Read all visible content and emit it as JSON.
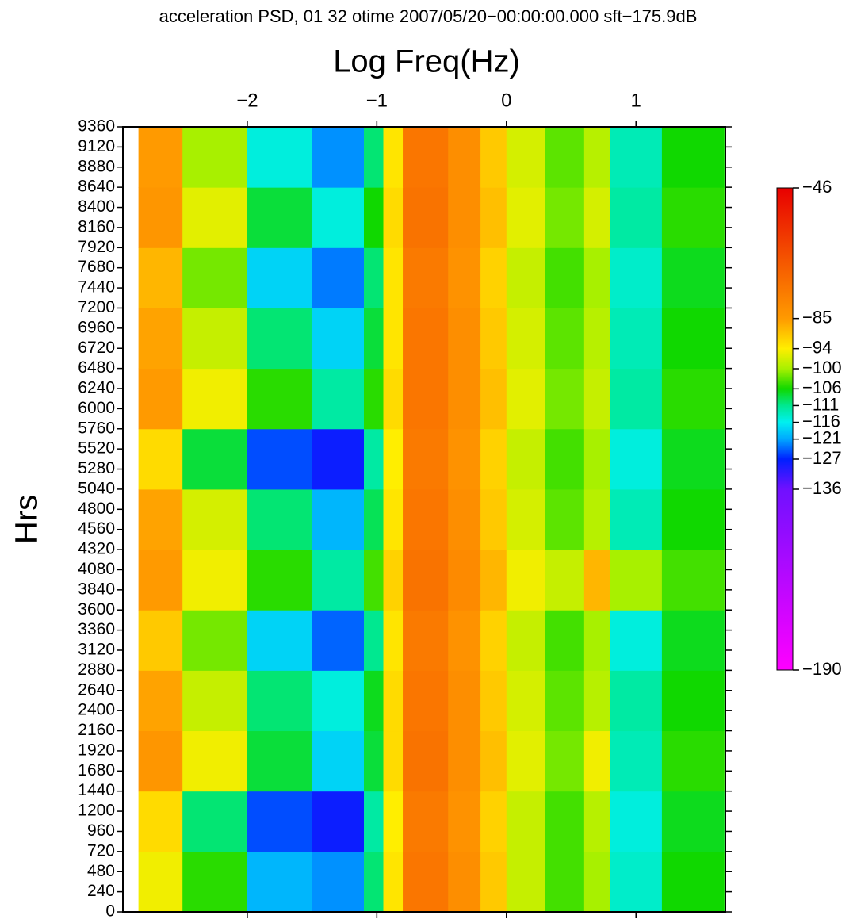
{
  "chart_data": {
    "type": "heatmap",
    "title": "acceleration PSD, 01 32 otime 2007/05/20−00:00:00.000 sft−175.9dB",
    "x_label": "Log Freq(Hz)",
    "y_label": "Hrs",
    "xlim": [
      -2.96,
      1.69
    ],
    "ylim": [
      0,
      9360
    ],
    "xticks": [
      {
        "value": -2,
        "label": "−2"
      },
      {
        "value": -1,
        "label": "−1"
      },
      0,
      1
    ],
    "yticks": [
      0,
      240,
      480,
      720,
      960,
      1200,
      1440,
      1680,
      1920,
      2160,
      2400,
      2640,
      2880,
      3120,
      3360,
      3600,
      3840,
      4080,
      4320,
      4560,
      4800,
      5040,
      5280,
      5520,
      5760,
      6000,
      6240,
      6480,
      6720,
      6960,
      7200,
      7440,
      7680,
      7920,
      8160,
      8400,
      8640,
      8880,
      9120,
      9360
    ],
    "xbins": [
      -2.84,
      -2.5,
      -2.0,
      -1.5,
      -1.1,
      -0.95,
      -0.8,
      -0.45,
      -0.2,
      0,
      0.3,
      0.6,
      0.8,
      1.2,
      1.68
    ],
    "ybins": [
      0,
      720,
      1440,
      2160,
      2880,
      3600,
      4320,
      5040,
      5760,
      6480,
      7200,
      7920,
      8640,
      9360
    ],
    "z": [
      [
        -95,
        -105,
        -120,
        -122,
        -110,
        -93,
        -76,
        -82,
        -90,
        -98,
        -104,
        -100,
        -114,
        -106
      ],
      [
        -92,
        -110,
        -125,
        -128,
        -112,
        -94,
        -77,
        -83,
        -91,
        -98,
        -104,
        -99,
        -115,
        -107
      ],
      [
        -84,
        -95,
        -108,
        -118,
        -108,
        -92,
        -75,
        -82,
        -89,
        -96,
        -102,
        -95,
        -113,
        -105
      ],
      [
        -86,
        -98,
        -110,
        -115,
        -107,
        -92,
        -76,
        -82,
        -90,
        -97,
        -103,
        -99,
        -112,
        -106
      ],
      [
        -90,
        -102,
        -118,
        -124,
        -111,
        -93,
        -77,
        -83,
        -91,
        -98,
        -104,
        -100,
        -115,
        -107
      ],
      [
        -85,
        -95,
        -105,
        -112,
        -104,
        -91,
        -75,
        -81,
        -88,
        -95,
        -98,
        -88,
        -100,
        -104
      ],
      [
        -86,
        -97,
        -110,
        -120,
        -109,
        -93,
        -76,
        -82,
        -90,
        -97,
        -103,
        -99,
        -113,
        -106
      ],
      [
        -92,
        -108,
        -125,
        -128,
        -112,
        -94,
        -77,
        -83,
        -91,
        -98,
        -104,
        -100,
        -115,
        -107
      ],
      [
        -85,
        -95,
        -105,
        -112,
        -105,
        -92,
        -76,
        -82,
        -89,
        -96,
        -102,
        -98,
        -112,
        -105
      ],
      [
        -86,
        -98,
        -110,
        -118,
        -108,
        -93,
        -76,
        -82,
        -90,
        -97,
        -103,
        -99,
        -113,
        -106
      ],
      [
        -88,
        -102,
        -118,
        -123,
        -110,
        -93,
        -77,
        -83,
        -91,
        -98,
        -104,
        -100,
        -114,
        -107
      ],
      [
        -84,
        -96,
        -108,
        -115,
        -106,
        -92,
        -75,
        -82,
        -89,
        -96,
        -102,
        -97,
        -112,
        -105
      ],
      [
        -85,
        -100,
        -115,
        -122,
        -110,
        -93,
        -76,
        -82,
        -90,
        -97,
        -103,
        -99,
        -113,
        -106
      ]
    ],
    "zlim": [
      -190,
      -46
    ],
    "zticks": [
      {
        "value": -46,
        "label": "−46"
      },
      {
        "value": -85,
        "label": "−85"
      },
      {
        "value": -94,
        "label": "−94"
      },
      {
        "value": -100,
        "label": "−100"
      },
      {
        "value": -106,
        "label": "−106"
      },
      {
        "value": -111,
        "label": "−111"
      },
      {
        "value": -116,
        "label": "−116"
      },
      {
        "value": -121,
        "label": "−121"
      },
      {
        "value": -127,
        "label": "−127"
      },
      {
        "value": -136,
        "label": "−136"
      },
      {
        "value": -190,
        "label": "−190"
      }
    ],
    "colorscale": [
      "#e80000",
      "#ff9a00",
      "#ffee00",
      "#a8f000",
      "#10d800",
      "#00e890",
      "#00f0f0",
      "#00a8ff",
      "#0020ff",
      "#7010ff",
      "#ff00ff"
    ]
  }
}
